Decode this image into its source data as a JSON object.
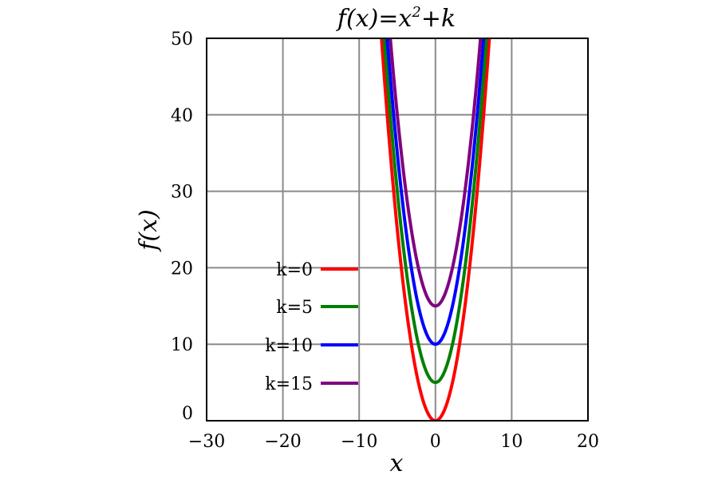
{
  "chart_data": {
    "type": "line",
    "title": "f(x)=x²+k",
    "title_parts": {
      "prefix": "f(x)=x",
      "superscript": "2",
      "suffix": "+k"
    },
    "xlabel": "x",
    "ylabel": "f(x)",
    "xlim": [
      -30,
      20
    ],
    "ylim": [
      0,
      50
    ],
    "x_ticks": [
      -30,
      -20,
      -10,
      0,
      10,
      20
    ],
    "y_ticks": [
      0,
      10,
      20,
      30,
      40,
      50
    ],
    "x_tick_labels": [
      "−30",
      "−20",
      "−10",
      "0",
      "10",
      "20"
    ],
    "y_tick_labels": [
      "0",
      "10",
      "20",
      "30",
      "40",
      "50"
    ],
    "grid": true,
    "legend_position": "left",
    "series": [
      {
        "name": "k=0",
        "k": 0,
        "color": "#ff0000",
        "x": [
          -7.07,
          -6,
          -5,
          -4,
          -3,
          -2,
          -1,
          0,
          1,
          2,
          3,
          4,
          5,
          6,
          7.07
        ],
        "y": [
          50,
          36,
          25,
          16,
          9,
          4,
          1,
          0,
          1,
          4,
          9,
          16,
          25,
          36,
          50
        ]
      },
      {
        "name": "k=5",
        "k": 5,
        "color": "#008000",
        "x": [
          -6.71,
          -6,
          -5,
          -4,
          -3,
          -2,
          -1,
          0,
          1,
          2,
          3,
          4,
          5,
          6,
          6.71
        ],
        "y": [
          50,
          41,
          30,
          21,
          14,
          9,
          6,
          5,
          6,
          9,
          14,
          21,
          30,
          41,
          50
        ]
      },
      {
        "name": "k=10",
        "k": 10,
        "color": "#0000ff",
        "x": [
          -6.32,
          -6,
          -5,
          -4,
          -3,
          -2,
          -1,
          0,
          1,
          2,
          3,
          4,
          5,
          6,
          6.32
        ],
        "y": [
          50,
          46,
          35,
          26,
          19,
          14,
          11,
          10,
          11,
          14,
          19,
          26,
          35,
          46,
          50
        ]
      },
      {
        "name": "k=15",
        "k": 15,
        "color": "#800080",
        "x": [
          -5.92,
          -5,
          -4,
          -3,
          -2,
          -1,
          0,
          1,
          2,
          3,
          4,
          5,
          5.92
        ],
        "y": [
          50,
          40,
          31,
          24,
          19,
          16,
          15,
          16,
          19,
          24,
          31,
          40,
          50
        ]
      }
    ]
  }
}
